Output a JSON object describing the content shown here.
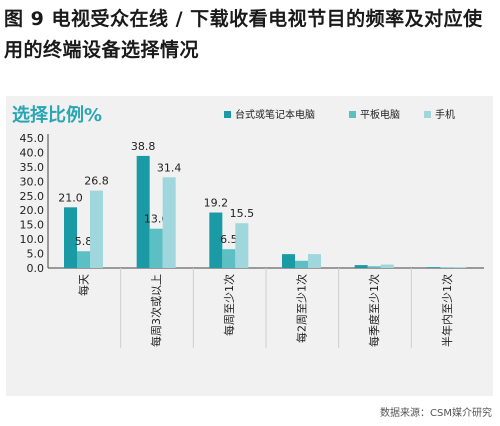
{
  "figure": {
    "title": "图 9 电视受众在线 / 下载收看电视节目的频率及对应使用的终端设备选择情况",
    "source": "数据来源：CSM媒介研究"
  },
  "colors": {
    "desktop": "#1a9aa5",
    "tablet": "#5cbfc4",
    "phone": "#9fd7dc",
    "subtitle": "#29a6b3",
    "panel": "#f1f1f1"
  },
  "chart_data": {
    "type": "bar",
    "title": "选择比例%",
    "xlabel": "",
    "ylabel": "",
    "ylim": [
      0,
      45
    ],
    "yticks": [
      "0.0",
      "5.0",
      "10.0",
      "15.0",
      "20.0",
      "25.0",
      "30.0",
      "35.0",
      "40.0",
      "45.0"
    ],
    "categories": [
      "每天",
      "每周3次或以上",
      "每周至少1次",
      "每2周至少1次",
      "每季度至少1次",
      "半年内至少1次"
    ],
    "series": [
      {
        "name": "台式或笔记本电脑",
        "values": [
          21.0,
          38.8,
          19.2,
          4.8,
          1.0,
          0.3
        ],
        "labels": [
          "21.0",
          "38.8",
          "19.2",
          "",
          "",
          ""
        ]
      },
      {
        "name": "平板电脑",
        "values": [
          5.8,
          13.6,
          6.5,
          2.5,
          0.6,
          0.2
        ],
        "labels": [
          "5.8",
          "13.6",
          "6.5",
          "",
          "",
          ""
        ]
      },
      {
        "name": "手机",
        "values": [
          26.8,
          31.4,
          15.5,
          4.8,
          1.2,
          0.3
        ],
        "labels": [
          "26.8",
          "31.4",
          "15.5",
          "",
          "",
          ""
        ]
      }
    ],
    "grid": false,
    "legend": "top-right"
  }
}
